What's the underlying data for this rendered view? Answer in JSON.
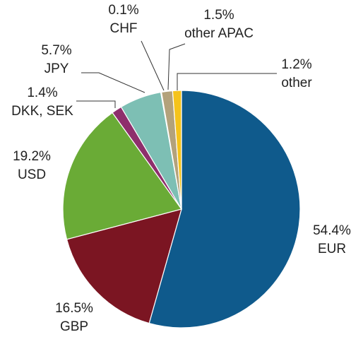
{
  "chart_data": {
    "type": "pie",
    "categories": [
      "EUR",
      "GBP",
      "USD",
      "DKK, SEK",
      "JPY",
      "CHF",
      "other APAC",
      "other"
    ],
    "values": [
      54.4,
      16.5,
      19.2,
      1.4,
      5.7,
      0.1,
      1.5,
      1.2
    ],
    "value_labels": [
      "54.4%",
      "16.5%",
      "19.2%",
      "1.4%",
      "5.7%",
      "0.1%",
      "1.5%",
      "1.2%"
    ],
    "colors": [
      "#0f5a8c",
      "#7b1522",
      "#6aab36",
      "#8e2f6c",
      "#7dbfb4",
      "#2a80aa",
      "#b3a27b",
      "#f5c31b"
    ]
  }
}
